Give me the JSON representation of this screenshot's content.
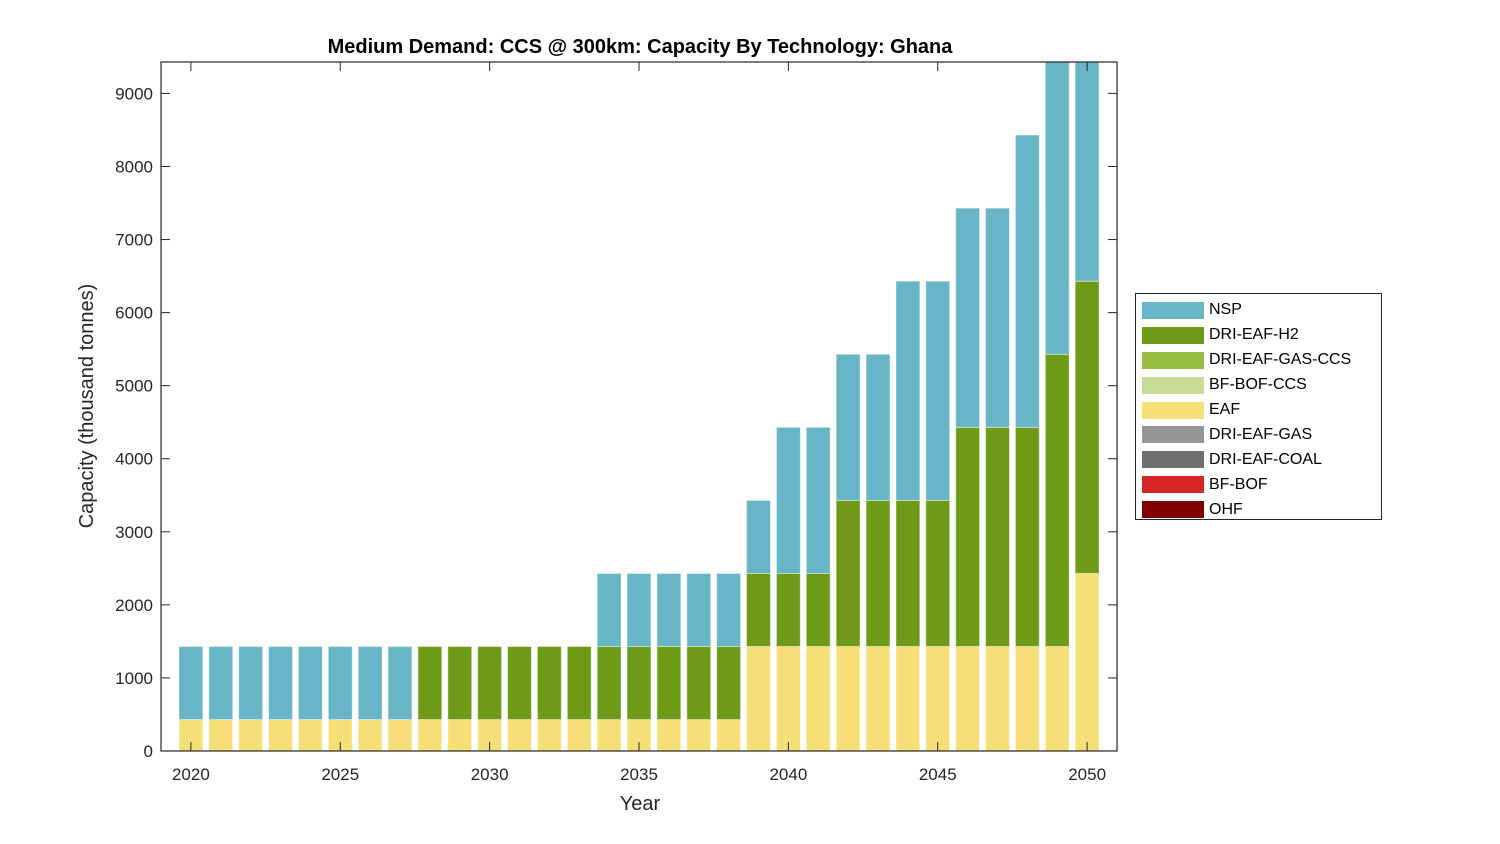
{
  "chart_data": {
    "type": "bar",
    "stacked": true,
    "title": "Medium Demand: CCS @ 300km: Capacity By Technology: Ghana",
    "xlabel": "Year",
    "ylabel": "Capacity (thousand tonnes)",
    "xlim": [
      2019,
      2051
    ],
    "ylim": [
      0,
      9430
    ],
    "xticks": [
      2020,
      2025,
      2030,
      2035,
      2040,
      2045,
      2050
    ],
    "yticks": [
      0,
      1000,
      2000,
      3000,
      4000,
      5000,
      6000,
      7000,
      8000,
      9000
    ],
    "grid": false,
    "legend_position": "right",
    "categories": [
      2020,
      2021,
      2022,
      2023,
      2024,
      2025,
      2026,
      2027,
      2028,
      2029,
      2030,
      2031,
      2032,
      2033,
      2034,
      2035,
      2036,
      2037,
      2038,
      2039,
      2040,
      2041,
      2042,
      2043,
      2044,
      2045,
      2046,
      2047,
      2048,
      2049,
      2050
    ],
    "series": [
      {
        "name": "OHF",
        "color": "#7f0000",
        "values": [
          0,
          0,
          0,
          0,
          0,
          0,
          0,
          0,
          0,
          0,
          0,
          0,
          0,
          0,
          0,
          0,
          0,
          0,
          0,
          0,
          0,
          0,
          0,
          0,
          0,
          0,
          0,
          0,
          0,
          0,
          0
        ]
      },
      {
        "name": "BF-BOF",
        "color": "#d62728",
        "values": [
          0,
          0,
          0,
          0,
          0,
          0,
          0,
          0,
          0,
          0,
          0,
          0,
          0,
          0,
          0,
          0,
          0,
          0,
          0,
          0,
          0,
          0,
          0,
          0,
          0,
          0,
          0,
          0,
          0,
          0,
          0
        ]
      },
      {
        "name": "DRI-EAF-COAL",
        "color": "#707070",
        "values": [
          0,
          0,
          0,
          0,
          0,
          0,
          0,
          0,
          0,
          0,
          0,
          0,
          0,
          0,
          0,
          0,
          0,
          0,
          0,
          0,
          0,
          0,
          0,
          0,
          0,
          0,
          0,
          0,
          0,
          0,
          0
        ]
      },
      {
        "name": "DRI-EAF-GAS",
        "color": "#969696",
        "values": [
          0,
          0,
          0,
          0,
          0,
          0,
          0,
          0,
          0,
          0,
          0,
          0,
          0,
          0,
          0,
          0,
          0,
          0,
          0,
          0,
          0,
          0,
          0,
          0,
          0,
          0,
          0,
          0,
          0,
          0,
          0
        ]
      },
      {
        "name": "EAF",
        "color": "#f7df78",
        "values": [
          430,
          430,
          430,
          430,
          430,
          430,
          430,
          430,
          430,
          430,
          430,
          430,
          430,
          430,
          430,
          430,
          430,
          430,
          430,
          1430,
          1430,
          1430,
          1430,
          1430,
          1430,
          1430,
          1430,
          1430,
          1430,
          1430,
          2430
        ]
      },
      {
        "name": "BF-BOF-CCS",
        "color": "#c8dc98",
        "values": [
          0,
          0,
          0,
          0,
          0,
          0,
          0,
          0,
          0,
          0,
          0,
          0,
          0,
          0,
          0,
          0,
          0,
          0,
          0,
          0,
          0,
          0,
          0,
          0,
          0,
          0,
          0,
          0,
          0,
          0,
          0
        ]
      },
      {
        "name": "DRI-EAF-GAS-CCS",
        "color": "#98bd45",
        "values": [
          0,
          0,
          0,
          0,
          0,
          0,
          0,
          0,
          0,
          0,
          0,
          0,
          0,
          0,
          0,
          0,
          0,
          0,
          0,
          0,
          0,
          0,
          0,
          0,
          0,
          0,
          0,
          0,
          0,
          0,
          0
        ]
      },
      {
        "name": "DRI-EAF-H2",
        "color": "#6f9a18",
        "values": [
          0,
          0,
          0,
          0,
          0,
          0,
          0,
          0,
          1000,
          1000,
          1000,
          1000,
          1000,
          1000,
          1000,
          1000,
          1000,
          1000,
          1000,
          1000,
          1000,
          1000,
          2000,
          2000,
          2000,
          2000,
          3000,
          3000,
          3000,
          4000,
          4000
        ]
      },
      {
        "name": "NSP",
        "color": "#67b5c6",
        "values": [
          1000,
          1000,
          1000,
          1000,
          1000,
          1000,
          1000,
          1000,
          0,
          0,
          0,
          0,
          0,
          0,
          1000,
          1000,
          1000,
          1000,
          1000,
          1000,
          2000,
          2000,
          2000,
          2000,
          3000,
          3000,
          3000,
          3000,
          4000,
          4000,
          3000
        ]
      }
    ],
    "legend": [
      "NSP",
      "DRI-EAF-H2",
      "DRI-EAF-GAS-CCS",
      "BF-BOF-CCS",
      "EAF",
      "DRI-EAF-GAS",
      "DRI-EAF-COAL",
      "BF-BOF",
      "OHF"
    ]
  }
}
